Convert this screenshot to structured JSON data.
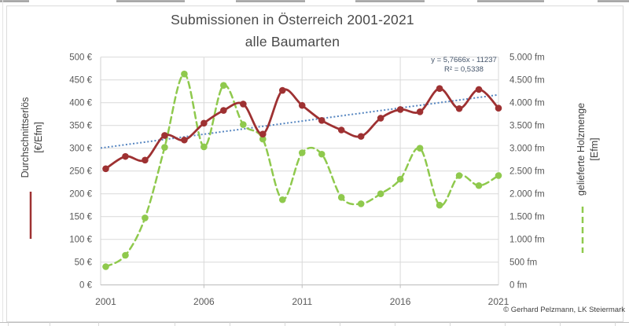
{
  "chart_data": {
    "type": "line",
    "title": "Submissionen in Österreich 2001-2021",
    "subtitle": "alle Baumarten",
    "x": [
      2001,
      2002,
      2003,
      2004,
      2005,
      2006,
      2007,
      2008,
      2009,
      2010,
      2011,
      2012,
      2013,
      2014,
      2015,
      2016,
      2017,
      2018,
      2019,
      2020,
      2021
    ],
    "x_axis": {
      "tick_labels": [
        2001,
        2006,
        2011,
        2016,
        2021
      ],
      "gridline_years": [
        2006,
        2011,
        2016
      ]
    },
    "y_left": {
      "label_line1": "Durchschnittserlös",
      "label_line2": "[€/Efm]",
      "min": 0,
      "max": 500,
      "step": 50,
      "suffix": " €"
    },
    "y_right": {
      "label_line1": "gelieferte Holzmenge",
      "label_line2": "[Efm]",
      "min": 0,
      "max": 5000,
      "step": 500,
      "suffix": " fm"
    },
    "series": [
      {
        "name": "Durchschnittserlös",
        "axis": "left",
        "color": "#9E3132",
        "line_style": "solid",
        "values": [
          255,
          282,
          274,
          328,
          318,
          355,
          383,
          397,
          331,
          427,
          394,
          361,
          340,
          326,
          366,
          385,
          380,
          431,
          387,
          429,
          388
        ]
      },
      {
        "name": "gelieferte Holzmenge",
        "axis": "right",
        "color": "#8FC94D",
        "line_style": "dashed",
        "values": [
          400,
          650,
          1470,
          3020,
          4630,
          3030,
          4380,
          3520,
          3200,
          1870,
          2900,
          2870,
          1920,
          1780,
          2000,
          2320,
          3000,
          1750,
          2400,
          2180,
          2400
        ]
      }
    ],
    "trendline": {
      "equation": "y = 5,7666x - 11237",
      "r2": "R² = 0,5338",
      "slope": 5.7666,
      "intercept": -11237,
      "color": "#5585C0",
      "line_style": "dotted"
    },
    "grid": true,
    "colors": {
      "gridline": "#D9D9D9",
      "axis_line": "#BFBFBF",
      "tick_label": "#595959"
    }
  },
  "attribution": "© Gerhard Pelzmann, LK Steiermark"
}
